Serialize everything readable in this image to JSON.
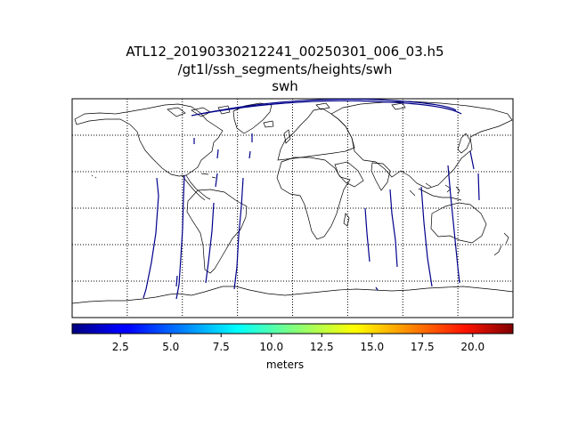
{
  "title": {
    "line1": "ATL12_20190330212241_00250301_006_03.h5",
    "line2": "/gt1l/ssh_segments/heights/swh",
    "line3": "swh"
  },
  "map": {
    "projection": "cylindrical",
    "lon_range": [
      -180,
      180
    ],
    "lat_range": [
      -90,
      90
    ],
    "graticule": {
      "style": "dotted",
      "meridians_deg": [
        -135,
        -90,
        -45,
        0,
        45,
        90,
        135
      ],
      "parallels_deg": [
        -60,
        -30,
        0,
        30,
        60
      ]
    },
    "coastlines": true,
    "track_color": "#00008b"
  },
  "colorbar": {
    "colormap": "jet",
    "range": [
      0.1,
      22.0
    ],
    "ticks": [
      {
        "value": 2.5,
        "label": "2.5"
      },
      {
        "value": 5.0,
        "label": "5.0"
      },
      {
        "value": 7.5,
        "label": "7.5"
      },
      {
        "value": 10.0,
        "label": "10.0"
      },
      {
        "value": 12.5,
        "label": "12.5"
      },
      {
        "value": 15.0,
        "label": "15.0"
      },
      {
        "value": 17.5,
        "label": "17.5"
      },
      {
        "value": 20.0,
        "label": "20.0"
      }
    ],
    "units": "meters"
  }
}
